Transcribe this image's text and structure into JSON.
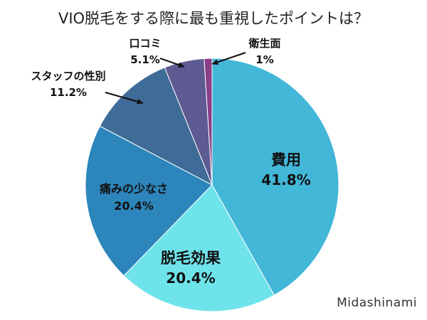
{
  "chart_data": {
    "type": "pie",
    "title": "VIO脱毛をする際に最も重視したポイントは？",
    "slices": [
      {
        "label": "費用",
        "value": 41.8,
        "value_text": "41.8%",
        "color": "#42b7d8"
      },
      {
        "label": "脱毛効果",
        "value": 20.4,
        "value_text": "20.4%",
        "color": "#6fe3ea"
      },
      {
        "label": "痛みの少なさ",
        "value": 20.4,
        "value_text": "20.4%",
        "color": "#2c86bb"
      },
      {
        "label": "スタッフの性別",
        "value": 11.2,
        "value_text": "11.2%",
        "color": "#3e6b97"
      },
      {
        "label": "口コミ",
        "value": 5.1,
        "value_text": "5.1%",
        "color": "#5e5a92"
      },
      {
        "label": "衛生面",
        "value": 1,
        "value_text": "1%",
        "color": "#8a3f86"
      }
    ],
    "start": "12 o'clock",
    "direction": "clockwise",
    "legend": "none"
  },
  "watermark": "Midashinami"
}
